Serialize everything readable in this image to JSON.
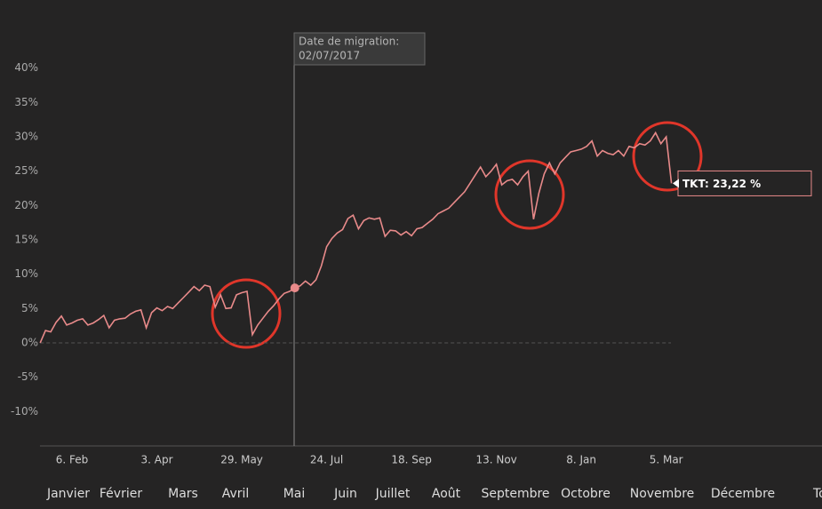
{
  "chart_data": {
    "type": "line",
    "categories": [
      null,
      null,
      null,
      null,
      null,
      null,
      "6. Feb",
      null,
      null,
      null,
      null,
      null,
      null,
      null,
      null,
      null,
      null,
      null,
      null,
      null,
      null,
      null,
      "3. Apr",
      null,
      null,
      null,
      null,
      null,
      null,
      null,
      null,
      null,
      null,
      null,
      null,
      null,
      null,
      null,
      "29. May",
      null,
      null,
      null,
      null,
      null,
      null,
      null,
      null,
      null,
      null,
      null,
      null,
      null,
      null,
      null,
      "24. Jul",
      null,
      null,
      null,
      null,
      null,
      null,
      null,
      null,
      null,
      null,
      null,
      null,
      null,
      null,
      null,
      "18. Sep",
      null,
      null,
      null,
      null,
      null,
      null,
      null,
      null,
      null,
      null,
      null,
      null,
      null,
      null,
      null,
      "13. Nov",
      null,
      null,
      null,
      null,
      null,
      null,
      null,
      null,
      null,
      null,
      null,
      null,
      null,
      null,
      null,
      "8. Jan",
      null,
      null,
      null,
      null,
      null,
      null,
      null,
      null,
      null,
      null,
      null,
      null,
      null,
      null,
      null,
      "5. Mar",
      null
    ],
    "series": [
      {
        "name": "TKT",
        "color": "#e88a8a",
        "values": [
          0,
          1.8,
          1.6,
          3.0,
          3.9,
          2.6,
          2.9,
          3.3,
          3.5,
          2.6,
          2.9,
          3.4,
          4.0,
          2.2,
          3.3,
          3.5,
          3.6,
          4.2,
          4.6,
          4.8,
          2.2,
          4.4,
          5.1,
          4.7,
          5.3,
          5.0,
          5.8,
          6.6,
          7.4,
          8.2,
          7.6,
          8.4,
          8.2,
          5.2,
          7.0,
          5.0,
          5.1,
          7.0,
          7.3,
          7.5,
          1.2,
          2.6,
          3.6,
          4.6,
          5.4,
          6.4,
          7.2,
          7.5,
          8.0,
          8.3,
          9.0,
          8.4,
          9.2,
          11.2,
          14.0,
          15.2,
          16.0,
          16.5,
          18.1,
          18.6,
          16.6,
          17.8,
          18.2,
          18.0,
          18.2,
          15.5,
          16.4,
          16.3,
          15.7,
          16.2,
          15.6,
          16.6,
          16.8,
          17.4,
          18.0,
          18.8,
          19.2,
          19.6,
          20.4,
          21.2,
          22.0,
          23.2,
          24.4,
          25.6,
          24.2,
          25.0,
          26.0,
          23.0,
          23.6,
          23.8,
          23.0,
          24.2,
          25.0,
          18.0,
          21.8,
          24.6,
          26.2,
          24.6,
          26.2,
          27.0,
          27.8,
          28.0,
          28.2,
          28.6,
          29.4,
          27.2,
          28.0,
          27.6,
          27.4,
          28.0,
          27.2,
          28.6,
          28.4,
          29.0,
          28.8,
          29.4,
          30.6,
          29.0,
          30.0,
          23.22
        ]
      }
    ],
    "ylim": [
      -15,
      45
    ],
    "yticks": [
      {
        "value": -10,
        "label": "-10%"
      },
      {
        "value": -5,
        "label": "-5%"
      },
      {
        "value": 0,
        "label": "0%"
      },
      {
        "value": 5,
        "label": "5%"
      },
      {
        "value": 10,
        "label": "10%"
      },
      {
        "value": 15,
        "label": "15%"
      },
      {
        "value": 20,
        "label": "20%"
      },
      {
        "value": 25,
        "label": "25%"
      },
      {
        "value": 30,
        "label": "30%"
      },
      {
        "value": 35,
        "label": "35%"
      },
      {
        "value": 40,
        "label": "40%"
      }
    ],
    "zero_line": true,
    "migration": {
      "title": "Date de migration:",
      "date": "02/07/2017"
    },
    "tooltip": "TKT: 23,22 %",
    "month_labels": [
      "Janvier",
      "Février",
      "Mars",
      "Avril",
      "Mai",
      "Juin",
      "Juillet",
      "Août",
      "Septembre",
      "Octobre",
      "Novembre",
      "Décembre",
      "Tot"
    ]
  }
}
